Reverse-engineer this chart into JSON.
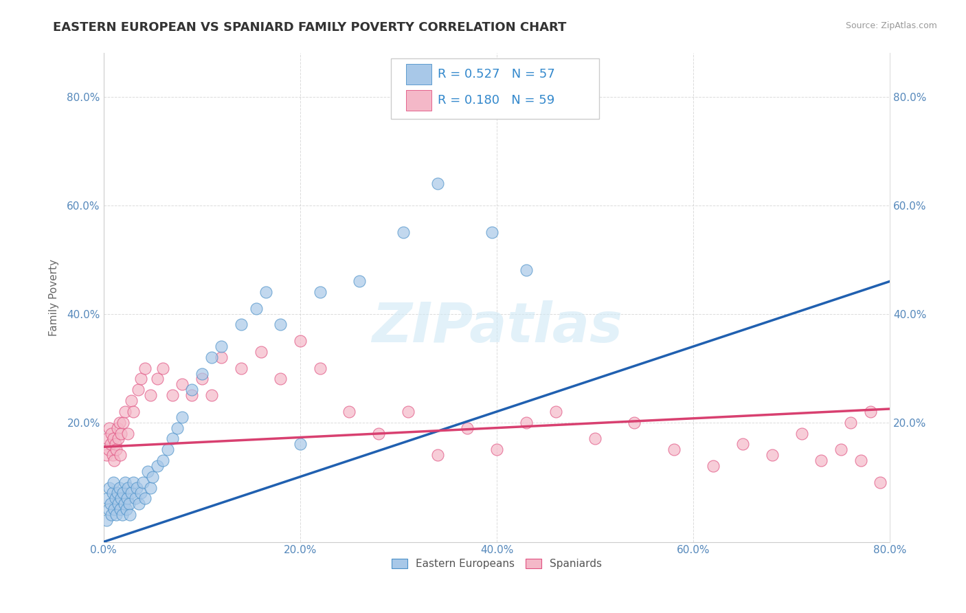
{
  "title": "EASTERN EUROPEAN VS SPANIARD FAMILY POVERTY CORRELATION CHART",
  "source": "Source: ZipAtlas.com",
  "ylabel": "Family Poverty",
  "xlim": [
    0.0,
    0.8
  ],
  "ylim": [
    -0.02,
    0.88
  ],
  "xtick_labels": [
    "0.0%",
    "20.0%",
    "40.0%",
    "60.0%",
    "80.0%"
  ],
  "xtick_vals": [
    0.0,
    0.2,
    0.4,
    0.6,
    0.8
  ],
  "ytick_labels": [
    "20.0%",
    "40.0%",
    "60.0%",
    "80.0%"
  ],
  "ytick_vals": [
    0.2,
    0.4,
    0.6,
    0.8
  ],
  "watermark": "ZIPatlas",
  "blue_R": "0.527",
  "blue_N": "57",
  "pink_R": "0.180",
  "pink_N": "59",
  "blue_color": "#a8c8e8",
  "pink_color": "#f4b8c8",
  "blue_edge_color": "#4a90c8",
  "pink_edge_color": "#e05080",
  "blue_line_color": "#2060b0",
  "pink_line_color": "#d84070",
  "background_color": "#ffffff",
  "grid_color": "#cccccc",
  "blue_scatter_x": [
    0.003,
    0.004,
    0.005,
    0.006,
    0.007,
    0.008,
    0.009,
    0.01,
    0.011,
    0.012,
    0.013,
    0.014,
    0.015,
    0.016,
    0.017,
    0.018,
    0.019,
    0.02,
    0.021,
    0.022,
    0.023,
    0.024,
    0.025,
    0.026,
    0.027,
    0.028,
    0.03,
    0.032,
    0.034,
    0.036,
    0.038,
    0.04,
    0.042,
    0.045,
    0.048,
    0.05,
    0.055,
    0.06,
    0.065,
    0.07,
    0.075,
    0.08,
    0.09,
    0.1,
    0.11,
    0.12,
    0.14,
    0.155,
    0.165,
    0.18,
    0.2,
    0.22,
    0.26,
    0.305,
    0.34,
    0.395,
    0.43
  ],
  "blue_scatter_y": [
    0.02,
    0.06,
    0.04,
    0.08,
    0.05,
    0.03,
    0.07,
    0.09,
    0.04,
    0.06,
    0.03,
    0.07,
    0.05,
    0.08,
    0.04,
    0.06,
    0.03,
    0.07,
    0.05,
    0.09,
    0.04,
    0.06,
    0.08,
    0.05,
    0.03,
    0.07,
    0.09,
    0.06,
    0.08,
    0.05,
    0.07,
    0.09,
    0.06,
    0.11,
    0.08,
    0.1,
    0.12,
    0.13,
    0.15,
    0.17,
    0.19,
    0.21,
    0.26,
    0.29,
    0.32,
    0.34,
    0.38,
    0.41,
    0.44,
    0.38,
    0.16,
    0.44,
    0.46,
    0.55,
    0.64,
    0.55,
    0.48
  ],
  "pink_scatter_x": [
    0.003,
    0.004,
    0.005,
    0.006,
    0.007,
    0.008,
    0.009,
    0.01,
    0.011,
    0.012,
    0.013,
    0.014,
    0.015,
    0.016,
    0.017,
    0.018,
    0.02,
    0.022,
    0.025,
    0.028,
    0.03,
    0.035,
    0.038,
    0.042,
    0.048,
    0.055,
    0.06,
    0.07,
    0.08,
    0.09,
    0.1,
    0.11,
    0.12,
    0.14,
    0.16,
    0.18,
    0.2,
    0.22,
    0.25,
    0.28,
    0.31,
    0.34,
    0.37,
    0.4,
    0.43,
    0.46,
    0.5,
    0.54,
    0.58,
    0.62,
    0.65,
    0.68,
    0.71,
    0.73,
    0.75,
    0.76,
    0.77,
    0.78,
    0.79
  ],
  "pink_scatter_y": [
    0.14,
    0.17,
    0.15,
    0.19,
    0.16,
    0.18,
    0.14,
    0.17,
    0.13,
    0.16,
    0.15,
    0.19,
    0.17,
    0.2,
    0.14,
    0.18,
    0.2,
    0.22,
    0.18,
    0.24,
    0.22,
    0.26,
    0.28,
    0.3,
    0.25,
    0.28,
    0.3,
    0.25,
    0.27,
    0.25,
    0.28,
    0.25,
    0.32,
    0.3,
    0.33,
    0.28,
    0.35,
    0.3,
    0.22,
    0.18,
    0.22,
    0.14,
    0.19,
    0.15,
    0.2,
    0.22,
    0.17,
    0.2,
    0.15,
    0.12,
    0.16,
    0.14,
    0.18,
    0.13,
    0.15,
    0.2,
    0.13,
    0.22,
    0.09
  ],
  "title_fontsize": 13,
  "axis_label_fontsize": 11,
  "tick_fontsize": 11,
  "legend_fontsize": 13
}
